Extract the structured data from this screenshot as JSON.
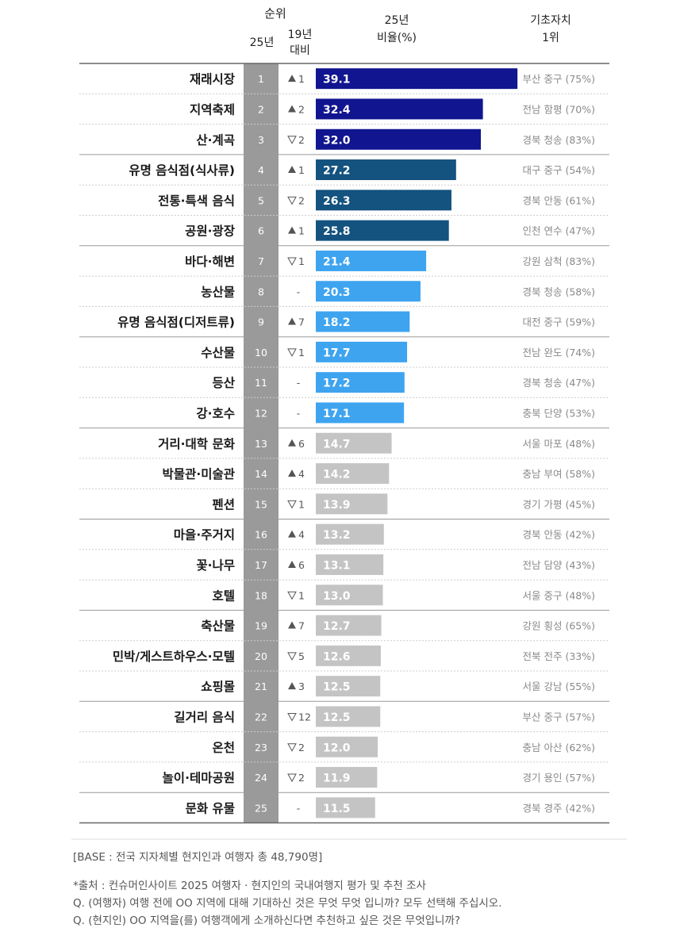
{
  "header": {
    "rank_group": "순위",
    "rank_25": "25년",
    "rank_change_line1": "19년",
    "rank_change_line2": "대비",
    "ratio_line1": "25년",
    "ratio_line2": "비율(%)",
    "top_line1": "기초자치",
    "top_line2": "1위"
  },
  "colors": {
    "tier1": "#11158f",
    "tier2": "#14527f",
    "tier3": "#3ea4ef",
    "tier4": "#c4c4c4",
    "rank_column": "#9a9a9a"
  },
  "chart_data": {
    "type": "bar",
    "orientation": "horizontal",
    "xlim": [
      0,
      40
    ],
    "rows": [
      {
        "rank": "1",
        "label": "재래시장",
        "change_dir": "up",
        "change": "1",
        "value": 39.1,
        "value_text": "39.1",
        "top": "부산 중구 (75%)",
        "tier": 1
      },
      {
        "rank": "2",
        "label": "지역축제",
        "change_dir": "up",
        "change": "2",
        "value": 32.4,
        "value_text": "32.4",
        "top": "전남 함평 (70%)",
        "tier": 1
      },
      {
        "rank": "3",
        "label": "산·계곡",
        "change_dir": "down",
        "change": "2",
        "value": 32.0,
        "value_text": "32.0",
        "top": "경북 청송 (83%)",
        "tier": 1
      },
      {
        "rank": "4",
        "label": "유명 음식점(식사류)",
        "change_dir": "up",
        "change": "1",
        "value": 27.2,
        "value_text": "27.2",
        "top": "대구 중구 (54%)",
        "tier": 2
      },
      {
        "rank": "5",
        "label": "전통·특색 음식",
        "change_dir": "down",
        "change": "2",
        "value": 26.3,
        "value_text": "26.3",
        "top": "경북 안동 (61%)",
        "tier": 2
      },
      {
        "rank": "6",
        "label": "공원·광장",
        "change_dir": "up",
        "change": "1",
        "value": 25.8,
        "value_text": "25.8",
        "top": "인천 연수 (47%)",
        "tier": 2
      },
      {
        "rank": "7",
        "label": "바다·해변",
        "change_dir": "down",
        "change": "1",
        "value": 21.4,
        "value_text": "21.4",
        "top": "강원 삼척 (83%)",
        "tier": 3
      },
      {
        "rank": "8",
        "label": "농산물",
        "change_dir": "none",
        "change": "-",
        "value": 20.3,
        "value_text": "20.3",
        "top": "경북 청송 (58%)",
        "tier": 3
      },
      {
        "rank": "9",
        "label": "유명 음식점(디저트류)",
        "change_dir": "up",
        "change": "7",
        "value": 18.2,
        "value_text": "18.2",
        "top": "대전 중구 (59%)",
        "tier": 3
      },
      {
        "rank": "10",
        "label": "수산물",
        "change_dir": "down",
        "change": "1",
        "value": 17.7,
        "value_text": "17.7",
        "top": "전남 완도 (74%)",
        "tier": 3
      },
      {
        "rank": "11",
        "label": "등산",
        "change_dir": "none",
        "change": "-",
        "value": 17.2,
        "value_text": "17.2",
        "top": "경북 청송 (47%)",
        "tier": 3
      },
      {
        "rank": "12",
        "label": "강·호수",
        "change_dir": "none",
        "change": "-",
        "value": 17.1,
        "value_text": "17.1",
        "top": "충북 단양 (53%)",
        "tier": 3
      },
      {
        "rank": "13",
        "label": "거리·대학 문화",
        "change_dir": "up",
        "change": "6",
        "value": 14.7,
        "value_text": "14.7",
        "top": "서울 마포 (48%)",
        "tier": 4
      },
      {
        "rank": "14",
        "label": "박물관·미술관",
        "change_dir": "up",
        "change": "4",
        "value": 14.2,
        "value_text": "14.2",
        "top": "충남 부여 (58%)",
        "tier": 4
      },
      {
        "rank": "15",
        "label": "펜션",
        "change_dir": "down",
        "change": "1",
        "value": 13.9,
        "value_text": "13.9",
        "top": "경기 가평 (45%)",
        "tier": 4
      },
      {
        "rank": "16",
        "label": "마을·주거지",
        "change_dir": "up",
        "change": "4",
        "value": 13.2,
        "value_text": "13.2",
        "top": "경북 안동 (42%)",
        "tier": 4
      },
      {
        "rank": "17",
        "label": "꽃·나무",
        "change_dir": "up",
        "change": "6",
        "value": 13.1,
        "value_text": "13.1",
        "top": "전남 담양 (43%)",
        "tier": 4
      },
      {
        "rank": "18",
        "label": "호텔",
        "change_dir": "down",
        "change": "1",
        "value": 13.0,
        "value_text": "13.0",
        "top": "서울 중구 (48%)",
        "tier": 4
      },
      {
        "rank": "19",
        "label": "축산물",
        "change_dir": "up",
        "change": "7",
        "value": 12.7,
        "value_text": "12.7",
        "top": "강원 횡성 (65%)",
        "tier": 4
      },
      {
        "rank": "20",
        "label": "민박/게스트하우스·모텔",
        "change_dir": "down",
        "change": "5",
        "value": 12.6,
        "value_text": "12.6",
        "top": "전북 전주 (33%)",
        "tier": 4
      },
      {
        "rank": "21",
        "label": "쇼핑몰",
        "change_dir": "up",
        "change": "3",
        "value": 12.5,
        "value_text": "12.5",
        "top": "서울 강남 (55%)",
        "tier": 4
      },
      {
        "rank": "22",
        "label": "길거리 음식",
        "change_dir": "down",
        "change": "12",
        "value": 12.5,
        "value_text": "12.5",
        "top": "부산 중구 (57%)",
        "tier": 4
      },
      {
        "rank": "23",
        "label": "온천",
        "change_dir": "down",
        "change": "2",
        "value": 12.0,
        "value_text": "12.0",
        "top": "충남 아산 (62%)",
        "tier": 4
      },
      {
        "rank": "24",
        "label": "놀이·테마공원",
        "change_dir": "down",
        "change": "2",
        "value": 11.9,
        "value_text": "11.9",
        "top": "경기 용인 (57%)",
        "tier": 4
      },
      {
        "rank": "25",
        "label": "문화 유물",
        "change_dir": "none",
        "change": "-",
        "value": 11.5,
        "value_text": "11.5",
        "top": "경북 경주 (42%)",
        "tier": 4
      }
    ]
  },
  "notes": {
    "base": "[BASE : 전국 지자체별 현지인과 여행자 총 48,790명]",
    "source": "*출처 : 컨슈머인사이트 2025 여행자 · 현지인의 국내여행지 평가 및 추천 조사",
    "q1": "Q. (여행자) 여행 전에 OO 지역에 대해 기대하신 것은 무엇 무엇 입니까? 모두 선택해 주십시오.",
    "q2": "Q. (현지인) OO 지역을(를) 여행객에게 소개하신다면 추천하고 싶은 것은 무엇입니까?"
  }
}
